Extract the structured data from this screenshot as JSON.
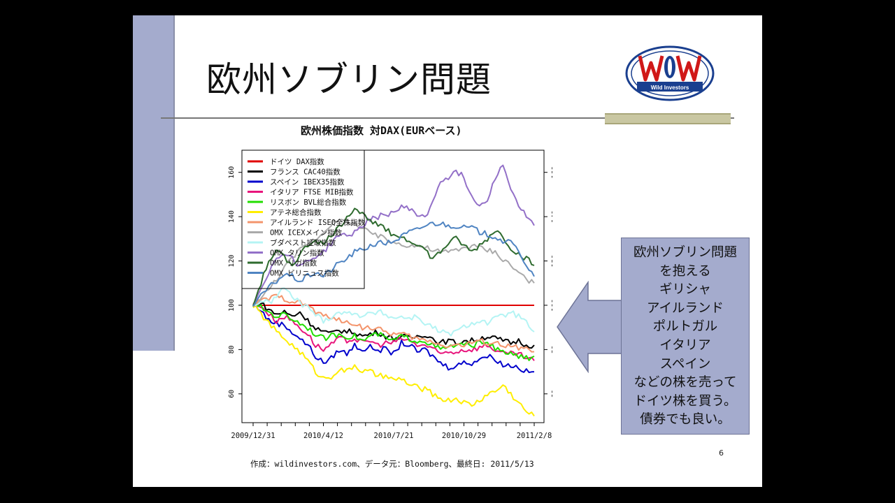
{
  "slide": {
    "title": "欧州ソブリン問題",
    "logo_text": "Wild Investors",
    "page_number": "6",
    "source": "作成：wildinvestors.com、データ元：Bloomberg、最終日: 2011/5/13",
    "callout_lines": [
      "欧州ソブリン問題",
      "を抱える",
      "ギリシャ",
      "アイルランド",
      "ポルトガル",
      "イタリア",
      "スペイン",
      "などの株を売って",
      "ドイツ株を買う。",
      "債券でも良い。"
    ],
    "colors": {
      "accent_bar": "#a4abcd",
      "olive_bar": "#c9c7a2",
      "callout": "#a4abcd"
    }
  },
  "chart_data": {
    "type": "line",
    "title": "欧州株価指数 対DAX(EURベース)",
    "xlabel": "",
    "ylabel": "",
    "x_tick_labels": [
      "2009/12/31",
      "2010/4/12",
      "2010/7/21",
      "2010/10/29",
      "2011/2/8"
    ],
    "y_ticks": [
      60,
      80,
      100,
      120,
      140,
      160
    ],
    "ylim": [
      47,
      170
    ],
    "legend_position": "top-left",
    "grid": false,
    "series": [
      {
        "name": "ドイツ DAX指数",
        "color": "#e00000",
        "values": [
          100,
          100,
          100,
          100,
          100,
          100,
          100,
          100,
          100,
          100,
          100,
          100,
          100,
          100,
          100,
          100,
          100,
          100,
          100,
          100,
          100,
          100,
          100,
          100,
          100,
          100,
          100,
          100,
          100,
          100,
          100,
          100,
          100,
          100,
          100,
          100,
          100
        ]
      },
      {
        "name": "フランス CAC40指数",
        "color": "#000000",
        "values": [
          100,
          101,
          98,
          96,
          97,
          95,
          97,
          93,
          90,
          88,
          87,
          89,
          88,
          88,
          86,
          87,
          88,
          86,
          85,
          86,
          85,
          86,
          87,
          85,
          83,
          84,
          83,
          84,
          84,
          85,
          86,
          85,
          84,
          83,
          84,
          82,
          82
        ]
      },
      {
        "name": "スペイン IBEX35指数",
        "color": "#0000cc",
        "values": [
          100,
          98,
          93,
          92,
          91,
          88,
          85,
          82,
          77,
          74,
          76,
          80,
          78,
          82,
          80,
          81,
          80,
          80,
          78,
          83,
          82,
          79,
          80,
          77,
          74,
          72,
          73,
          74,
          74,
          76,
          77,
          76,
          73,
          73,
          72,
          70,
          70
        ]
      },
      {
        "name": "イタリア FTSE MIB指数",
        "color": "#e8157c",
        "values": [
          100,
          100,
          96,
          93,
          95,
          93,
          90,
          87,
          82,
          80,
          82,
          85,
          84,
          85,
          83,
          84,
          82,
          83,
          83,
          85,
          84,
          82,
          82,
          80,
          78,
          79,
          79,
          80,
          80,
          81,
          82,
          80,
          78,
          78,
          78,
          76,
          75
        ]
      },
      {
        "name": "リスボン BVL総合指数",
        "color": "#22dd00",
        "values": [
          100,
          99,
          97,
          95,
          96,
          94,
          92,
          90,
          87,
          85,
          86,
          87,
          86,
          86,
          84,
          86,
          87,
          85,
          84,
          86,
          85,
          84,
          84,
          82,
          80,
          81,
          82,
          82,
          82,
          83,
          84,
          80,
          79,
          78,
          77,
          76,
          77
        ]
      },
      {
        "name": "アテネ総合指数",
        "color": "#ffee00",
        "values": [
          100,
          96,
          92,
          88,
          85,
          82,
          79,
          75,
          70,
          67,
          68,
          71,
          70,
          73,
          70,
          70,
          68,
          68,
          66,
          67,
          64,
          63,
          62,
          60,
          58,
          57,
          58,
          56,
          55,
          57,
          60,
          61,
          64,
          60,
          56,
          52,
          50
        ]
      },
      {
        "name": "アイルランド ISEQ全株指数",
        "color": "#f4956c",
        "values": [
          100,
          102,
          103,
          104,
          103,
          102,
          101,
          100,
          97,
          95,
          95,
          93,
          92,
          92,
          90,
          90,
          89,
          88,
          87,
          87,
          86,
          85,
          84,
          84,
          82,
          82,
          82,
          82,
          83,
          84,
          83,
          83,
          82,
          81,
          81,
          80,
          79
        ]
      },
      {
        "name": "OMX ICEXメイン指数",
        "color": "#aaaaaa",
        "values": [
          100,
          103,
          107,
          112,
          117,
          121,
          125,
          128,
          130,
          133,
          137,
          138,
          138,
          137,
          134,
          133,
          131,
          130,
          128,
          128,
          127,
          127,
          126,
          125,
          124,
          124,
          125,
          126,
          127,
          126,
          125,
          124,
          121,
          118,
          115,
          112,
          110
        ]
      },
      {
        "name": "ブダペスト証取指数",
        "color": "#b4f4f4",
        "values": [
          100,
          102,
          101,
          104,
          108,
          104,
          101,
          99,
          96,
          93,
          95,
          97,
          96,
          97,
          95,
          96,
          97,
          96,
          94,
          95,
          94,
          95,
          92,
          90,
          88,
          87,
          88,
          90,
          92,
          93,
          92,
          94,
          95,
          97,
          95,
          92,
          88
        ]
      },
      {
        "name": "OMX タリン指数",
        "color": "#9370c8",
        "values": [
          100,
          108,
          115,
          121,
          124,
          121,
          118,
          120,
          122,
          124,
          128,
          132,
          131,
          133,
          136,
          139,
          140,
          141,
          142,
          144,
          144,
          141,
          139,
          147,
          156,
          158,
          160,
          158,
          149,
          145,
          148,
          158,
          163,
          153,
          145,
          140,
          136
        ]
      },
      {
        "name": "OMX リガ指数",
        "color": "#2e6b2e",
        "values": [
          100,
          110,
          120,
          124,
          122,
          118,
          123,
          127,
          130,
          127,
          132,
          135,
          140,
          144,
          141,
          139,
          136,
          134,
          132,
          131,
          129,
          128,
          125,
          121,
          124,
          128,
          130,
          127,
          124,
          127,
          130,
          134,
          131,
          126,
          123,
          121,
          118
        ]
      },
      {
        "name": "OMX ビリニュス指数",
        "color": "#4f84c2",
        "values": [
          100,
          104,
          108,
          111,
          114,
          113,
          111,
          113,
          115,
          113,
          116,
          119,
          121,
          124,
          125,
          127,
          128,
          128,
          129,
          131,
          133,
          134,
          136,
          137,
          137,
          136,
          136,
          135,
          135,
          133,
          132,
          131,
          129,
          128,
          125,
          118,
          113
        ]
      }
    ]
  }
}
